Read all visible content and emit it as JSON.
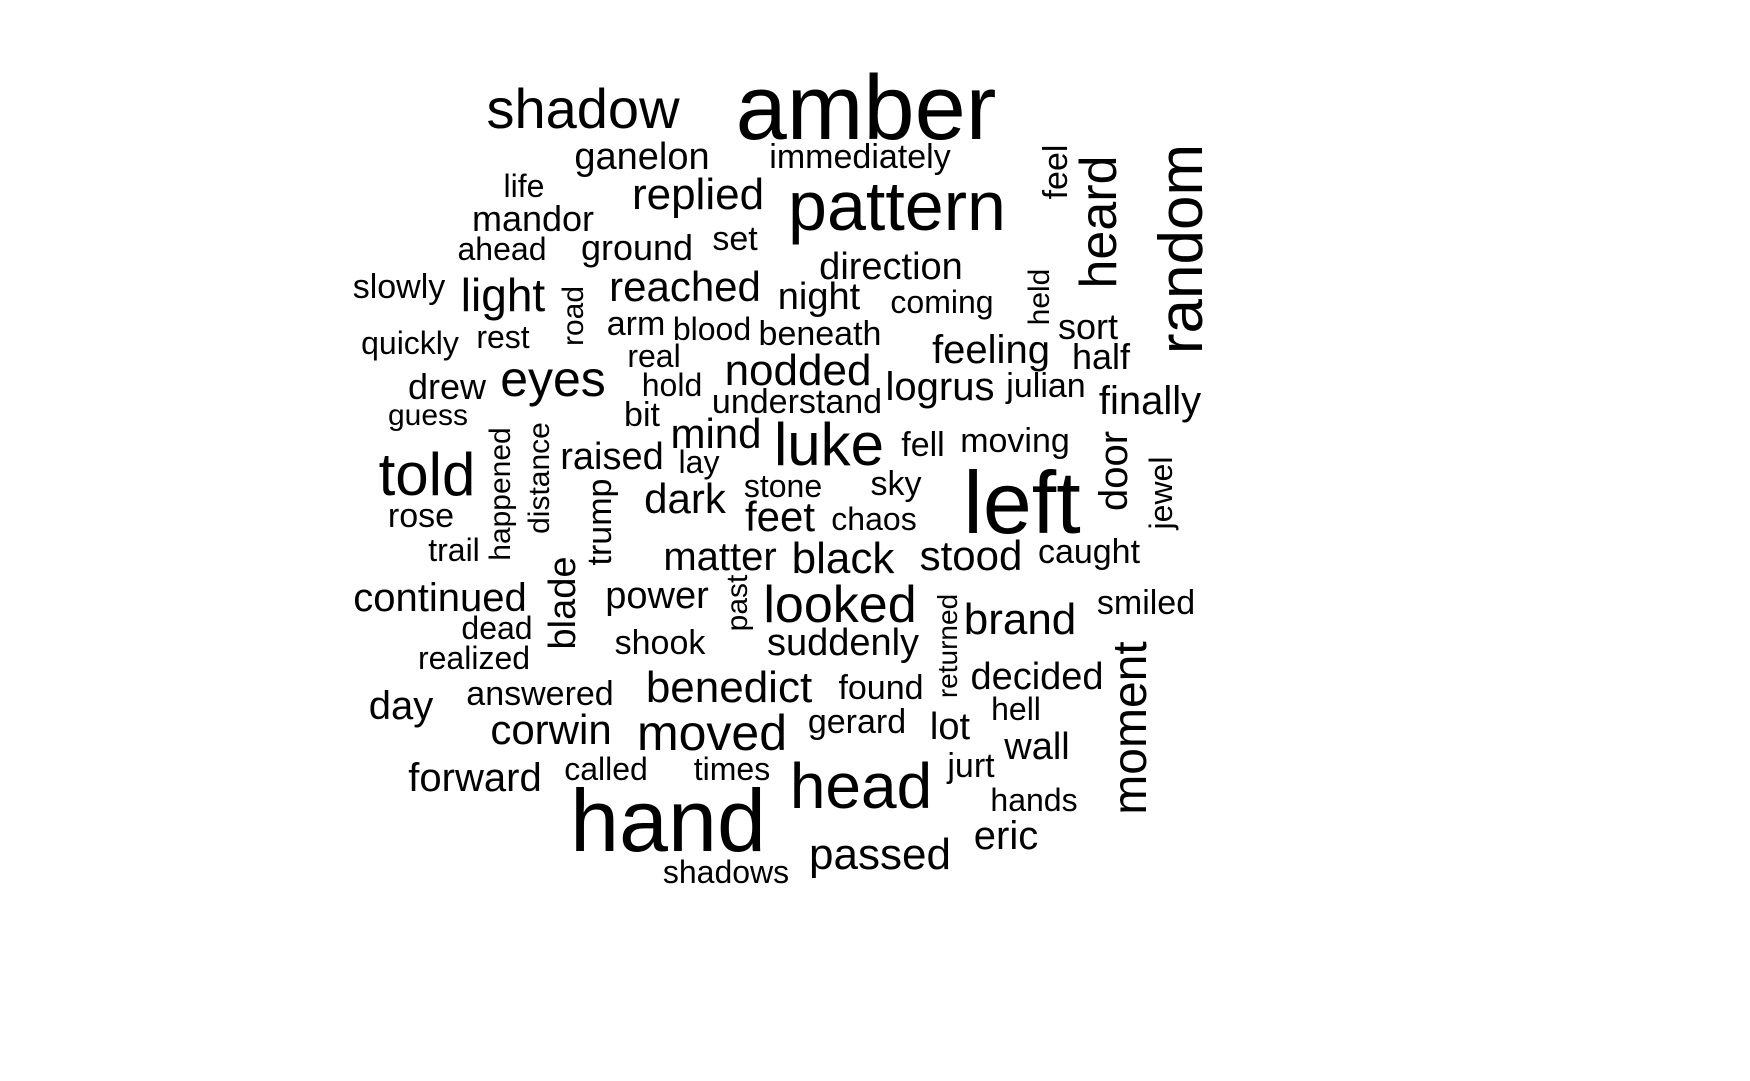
{
  "text_color": "#000000",
  "background_color": "#ffffff",
  "words": [
    {
      "text": "amber"
    },
    {
      "text": "hand"
    },
    {
      "text": "left"
    },
    {
      "text": "pattern"
    },
    {
      "text": "random"
    },
    {
      "text": "head"
    },
    {
      "text": "luke"
    },
    {
      "text": "told"
    },
    {
      "text": "heard"
    },
    {
      "text": "shadow"
    },
    {
      "text": "moment"
    },
    {
      "text": "looked"
    },
    {
      "text": "moved"
    },
    {
      "text": "eyes"
    },
    {
      "text": "black"
    },
    {
      "text": "benedict"
    },
    {
      "text": "replied"
    },
    {
      "text": "light"
    },
    {
      "text": "nodded"
    },
    {
      "text": "reached"
    },
    {
      "text": "brand"
    },
    {
      "text": "passed"
    },
    {
      "text": "corwin"
    },
    {
      "text": "mind"
    },
    {
      "text": "stood"
    },
    {
      "text": "dark"
    },
    {
      "text": "feet"
    },
    {
      "text": "matter"
    },
    {
      "text": "continued"
    },
    {
      "text": "logrus"
    },
    {
      "text": "feeling"
    },
    {
      "text": "raised"
    },
    {
      "text": "finally"
    },
    {
      "text": "forward"
    },
    {
      "text": "ganelon"
    },
    {
      "text": "suddenly"
    },
    {
      "text": "direction"
    },
    {
      "text": "power"
    },
    {
      "text": "day"
    },
    {
      "text": "night"
    },
    {
      "text": "door"
    },
    {
      "text": "eric"
    },
    {
      "text": "blade"
    },
    {
      "text": "decided"
    },
    {
      "text": "mandor"
    },
    {
      "text": "drew"
    },
    {
      "text": "immediately"
    },
    {
      "text": "ground"
    },
    {
      "text": "understand"
    },
    {
      "text": "beneath"
    },
    {
      "text": "answered"
    },
    {
      "text": "shook"
    },
    {
      "text": "half"
    },
    {
      "text": "sort"
    },
    {
      "text": "julian"
    },
    {
      "text": "moving"
    },
    {
      "text": "caught"
    },
    {
      "text": "smiled"
    },
    {
      "text": "lot"
    },
    {
      "text": "wall"
    },
    {
      "text": "gerard"
    },
    {
      "text": "found"
    },
    {
      "text": "trump"
    },
    {
      "text": "slowly"
    },
    {
      "text": "coming"
    },
    {
      "text": "quickly"
    },
    {
      "text": "set"
    },
    {
      "text": "arm"
    },
    {
      "text": "stone"
    },
    {
      "text": "bit"
    },
    {
      "text": "feel"
    },
    {
      "text": "sky"
    },
    {
      "text": "chaos"
    },
    {
      "text": "fell"
    },
    {
      "text": "hands"
    },
    {
      "text": "jurt"
    },
    {
      "text": "called"
    },
    {
      "text": "times"
    },
    {
      "text": "shadows"
    },
    {
      "text": "realized"
    },
    {
      "text": "dead"
    },
    {
      "text": "ahead"
    },
    {
      "text": "rest"
    },
    {
      "text": "rose"
    },
    {
      "text": "trail"
    },
    {
      "text": "hold"
    },
    {
      "text": "real"
    },
    {
      "text": "blood"
    },
    {
      "text": "lay"
    },
    {
      "text": "life"
    },
    {
      "text": "guess"
    },
    {
      "text": "hell"
    },
    {
      "text": "road"
    },
    {
      "text": "happened"
    },
    {
      "text": "distance"
    },
    {
      "text": "past"
    },
    {
      "text": "returned"
    },
    {
      "text": "held"
    },
    {
      "text": "jewel"
    }
  ]
}
